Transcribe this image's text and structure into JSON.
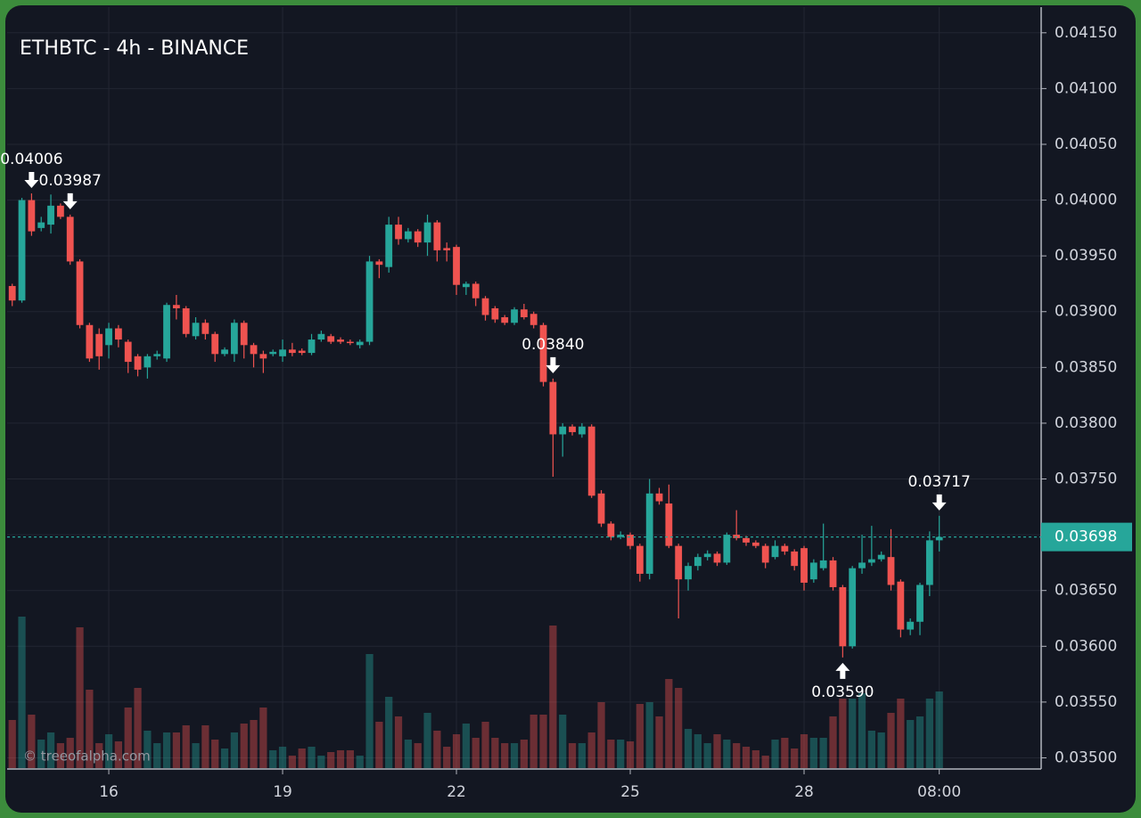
{
  "chart_data": {
    "type": "candlestick",
    "title": "ETHBTC - 4h - BINANCE",
    "watermark": "© treeofalpha.com",
    "categories": [
      null,
      null,
      null,
      null,
      null,
      null,
      null,
      null,
      null,
      null,
      "16",
      null,
      null,
      null,
      null,
      null,
      null,
      null,
      null,
      null,
      null,
      null,
      null,
      null,
      null,
      null,
      null,
      null,
      "19",
      null,
      null,
      null,
      null,
      null,
      null,
      null,
      null,
      null,
      null,
      null,
      null,
      null,
      null,
      null,
      null,
      null,
      "22",
      null,
      null,
      null,
      null,
      null,
      null,
      null,
      null,
      null,
      null,
      null,
      null,
      null,
      null,
      null,
      null,
      null,
      "25",
      null,
      null,
      null,
      null,
      null,
      null,
      null,
      null,
      null,
      null,
      null,
      null,
      null,
      null,
      null,
      null,
      null,
      "28",
      null,
      null,
      null,
      null,
      null,
      null,
      null,
      null,
      null,
      null,
      null,
      null,
      null,
      "08:00"
    ],
    "open": [
      0.03923,
      0.0391,
      0.04,
      0.03975,
      0.03978,
      0.03995,
      0.03985,
      0.03945,
      0.03888,
      0.0388,
      0.0387,
      0.03885,
      0.03873,
      0.0386,
      0.0385,
      0.0386,
      0.03858,
      0.03906,
      0.03903,
      0.03878,
      0.0389,
      0.0388,
      0.03862,
      0.03862,
      0.0389,
      0.0387,
      0.03862,
      0.03862,
      0.0386,
      0.03866,
      0.03865,
      0.03863,
      0.03875,
      0.03878,
      0.03875,
      0.03873,
      0.0387,
      0.03873,
      0.03945,
      0.0394,
      0.03978,
      0.03965,
      0.03972,
      0.03962,
      0.0398,
      0.03957,
      0.03958,
      0.03922,
      0.03925,
      0.03912,
      0.03903,
      0.03895,
      0.0389,
      0.03902,
      0.03898,
      0.03888,
      0.03837,
      0.0379,
      0.03797,
      0.0379,
      0.03797,
      0.03737,
      0.0371,
      0.03698,
      0.037,
      0.0369,
      0.03665,
      0.03737,
      0.03728,
      0.0369,
      0.0366,
      0.03672,
      0.0368,
      0.03683,
      0.03675,
      0.037,
      0.03697,
      0.03693,
      0.0369,
      0.0368,
      0.0369,
      0.03685,
      0.03688,
      0.0366,
      0.0367,
      0.03677,
      0.03653,
      0.036,
      0.0367,
      0.03675,
      0.03678,
      0.0368,
      0.03658,
      0.03615,
      0.03622,
      0.03655,
      0.03695
    ],
    "high": [
      0.03925,
      0.04002,
      0.04006,
      0.03985,
      0.04005,
      0.03997,
      0.03987,
      0.03947,
      0.0389,
      0.03885,
      0.0389,
      0.03888,
      0.03875,
      0.03862,
      0.03862,
      0.03865,
      0.03908,
      0.03915,
      0.03905,
      0.03895,
      0.03893,
      0.03882,
      0.03868,
      0.03893,
      0.03892,
      0.03872,
      0.03865,
      0.03866,
      0.03875,
      0.03872,
      0.03867,
      0.0388,
      0.03883,
      0.0388,
      0.03877,
      0.03875,
      0.03875,
      0.0395,
      0.03947,
      0.03985,
      0.03985,
      0.03975,
      0.03974,
      0.03987,
      0.03982,
      0.03962,
      0.0396,
      0.03927,
      0.03927,
      0.03914,
      0.03905,
      0.03897,
      0.03904,
      0.03907,
      0.039,
      0.0389,
      0.0384,
      0.038,
      0.03799,
      0.038,
      0.03799,
      0.0374,
      0.03712,
      0.03703,
      0.03702,
      0.03692,
      0.0375,
      0.03742,
      0.03745,
      0.03692,
      0.03675,
      0.03683,
      0.03686,
      0.03685,
      0.03702,
      0.03722,
      0.03699,
      0.03695,
      0.03692,
      0.03695,
      0.03692,
      0.03687,
      0.0369,
      0.03678,
      0.0371,
      0.0368,
      0.03655,
      0.03672,
      0.037,
      0.03708,
      0.03685,
      0.03705,
      0.0366,
      0.03625,
      0.03657,
      0.03703,
      0.03717
    ],
    "low": [
      0.03905,
      0.03908,
      0.03968,
      0.03972,
      0.0397,
      0.03983,
      0.03942,
      0.03885,
      0.03855,
      0.03848,
      0.03858,
      0.03868,
      0.03845,
      0.03842,
      0.0384,
      0.03857,
      0.03855,
      0.03893,
      0.03877,
      0.03875,
      0.03875,
      0.03855,
      0.0386,
      0.03855,
      0.03858,
      0.0385,
      0.03845,
      0.0386,
      0.03855,
      0.0386,
      0.03861,
      0.03861,
      0.03873,
      0.03871,
      0.03871,
      0.0387,
      0.03867,
      0.0387,
      0.0393,
      0.03935,
      0.0396,
      0.03962,
      0.03958,
      0.0395,
      0.03945,
      0.03945,
      0.03915,
      0.03915,
      0.03905,
      0.03892,
      0.0389,
      0.03888,
      0.03888,
      0.03893,
      0.03885,
      0.03833,
      0.03752,
      0.0377,
      0.03789,
      0.03787,
      0.03733,
      0.03707,
      0.03695,
      0.03696,
      0.03687,
      0.03658,
      0.0366,
      0.03727,
      0.03688,
      0.03625,
      0.0365,
      0.03668,
      0.03677,
      0.03672,
      0.03673,
      0.03695,
      0.0369,
      0.03688,
      0.0367,
      0.03678,
      0.03682,
      0.03668,
      0.0365,
      0.03657,
      0.03668,
      0.0365,
      0.0359,
      0.03598,
      0.03665,
      0.03672,
      0.03676,
      0.0365,
      0.03608,
      0.0361,
      0.0361,
      0.03645,
      0.03685
    ],
    "close": [
      0.0391,
      0.04,
      0.03972,
      0.0398,
      0.03995,
      0.03985,
      0.03945,
      0.03888,
      0.03858,
      0.0386,
      0.03885,
      0.03875,
      0.03855,
      0.03848,
      0.0386,
      0.03862,
      0.03906,
      0.03903,
      0.0388,
      0.0389,
      0.0388,
      0.03862,
      0.03866,
      0.0389,
      0.0387,
      0.03862,
      0.03858,
      0.03864,
      0.03866,
      0.03863,
      0.03863,
      0.03875,
      0.0388,
      0.03873,
      0.03873,
      0.03872,
      0.03873,
      0.03945,
      0.03942,
      0.03978,
      0.03965,
      0.03972,
      0.03962,
      0.0398,
      0.03955,
      0.03955,
      0.03924,
      0.03925,
      0.03912,
      0.03897,
      0.03893,
      0.0389,
      0.03902,
      0.03895,
      0.03888,
      0.03837,
      0.0379,
      0.03797,
      0.03792,
      0.03797,
      0.03735,
      0.0371,
      0.03698,
      0.037,
      0.0369,
      0.03665,
      0.03737,
      0.0373,
      0.0369,
      0.0366,
      0.03672,
      0.0368,
      0.03683,
      0.03675,
      0.037,
      0.03697,
      0.03693,
      0.0369,
      0.03675,
      0.0369,
      0.03685,
      0.03672,
      0.03657,
      0.03675,
      0.03677,
      0.03653,
      0.036,
      0.0367,
      0.03675,
      0.03678,
      0.03682,
      0.03655,
      0.03615,
      0.03622,
      0.03655,
      0.03695,
      0.03698
    ],
    "volume": [
      27,
      85,
      30,
      16,
      20,
      14,
      17,
      79,
      44,
      14,
      19,
      15,
      34,
      45,
      21,
      14,
      20,
      20,
      24,
      14,
      24,
      16,
      11,
      20,
      25,
      27,
      34,
      10,
      12,
      7,
      11,
      12,
      7,
      9,
      10,
      10,
      7,
      64,
      26,
      40,
      29,
      16,
      14,
      31,
      21,
      12,
      19,
      25,
      17,
      26,
      17,
      14,
      14,
      16,
      30,
      30,
      80,
      30,
      14,
      14,
      20,
      37,
      16,
      16,
      15,
      36,
      37,
      29,
      50,
      45,
      22,
      19,
      14,
      19,
      16,
      14,
      12,
      10,
      7,
      16,
      17,
      11,
      19,
      17,
      17,
      29,
      39,
      39,
      42,
      21,
      20,
      31,
      39,
      27,
      29,
      39,
      43
    ],
    "volume_ylim": [
      0,
      100
    ],
    "up_color": "#26a69a",
    "down_color": "#ef5350",
    "ylim": [
      0.0349,
      0.04173
    ],
    "yticks": [
      {
        "value": 0.035,
        "label": "0.03500"
      },
      {
        "value": 0.0355,
        "label": "0.03550"
      },
      {
        "value": 0.036,
        "label": "0.03600"
      },
      {
        "value": 0.0365,
        "label": "0.03650"
      },
      {
        "value": 0.037,
        "label": "0.03700"
      },
      {
        "value": 0.0375,
        "label": "0.03750"
      },
      {
        "value": 0.038,
        "label": "0.03800"
      },
      {
        "value": 0.0385,
        "label": "0.03850"
      },
      {
        "value": 0.039,
        "label": "0.03900"
      },
      {
        "value": 0.0395,
        "label": "0.03950"
      },
      {
        "value": 0.04,
        "label": "0.04000"
      },
      {
        "value": 0.0405,
        "label": "0.04050"
      },
      {
        "value": 0.041,
        "label": "0.04100"
      },
      {
        "value": 0.0415,
        "label": "0.04150"
      }
    ],
    "grid": true,
    "annotations": [
      {
        "value": 0.04006,
        "label": "0.04006"
      },
      {
        "value": 0.0384,
        "label": "0.03840"
      },
      {
        "value": 0.03987,
        "label": "0.03987"
      },
      {
        "value": 0.0359,
        "label": "0.03590"
      },
      {
        "value": 0.03717,
        "label": "0.03717"
      }
    ],
    "last_price": {
      "value": 0.03698,
      "label": "0.03698"
    }
  }
}
